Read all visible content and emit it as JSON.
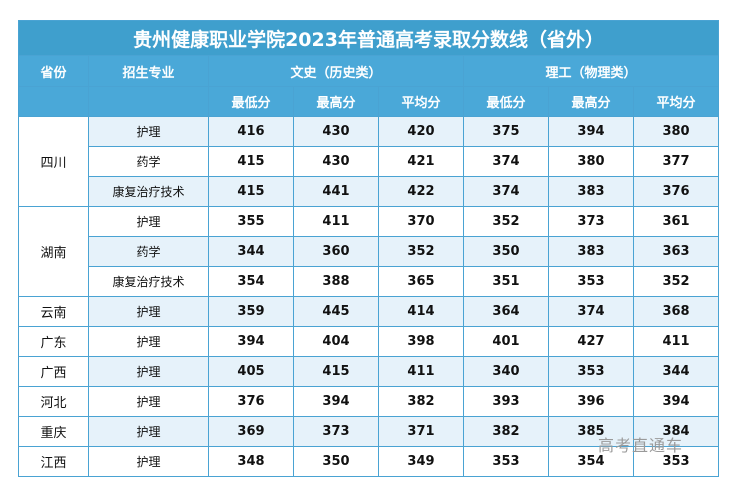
{
  "title": "贵州健康职业学院2023年普通高考录取分数线（省外）",
  "headers": {
    "province": "省份",
    "major": "招生专业",
    "wenshi": "文史（历史类）",
    "ligong": "理工（物理类）",
    "min": "最低分",
    "max": "最高分",
    "avg": "平均分"
  },
  "groups": [
    {
      "province": "四川",
      "rows": [
        {
          "major": "护理",
          "w_min": "416",
          "w_max": "430",
          "w_avg": "420",
          "l_min": "375",
          "l_max": "394",
          "l_avg": "380"
        },
        {
          "major": "药学",
          "w_min": "415",
          "w_max": "430",
          "w_avg": "421",
          "l_min": "374",
          "l_max": "380",
          "l_avg": "377"
        },
        {
          "major": "康复治疗技术",
          "w_min": "415",
          "w_max": "441",
          "w_avg": "422",
          "l_min": "374",
          "l_max": "383",
          "l_avg": "376"
        }
      ]
    },
    {
      "province": "湖南",
      "rows": [
        {
          "major": "护理",
          "w_min": "355",
          "w_max": "411",
          "w_avg": "370",
          "l_min": "352",
          "l_max": "373",
          "l_avg": "361"
        },
        {
          "major": "药学",
          "w_min": "344",
          "w_max": "360",
          "w_avg": "352",
          "l_min": "350",
          "l_max": "383",
          "l_avg": "363"
        },
        {
          "major": "康复治疗技术",
          "w_min": "354",
          "w_max": "388",
          "w_avg": "365",
          "l_min": "351",
          "l_max": "353",
          "l_avg": "352"
        }
      ]
    },
    {
      "province": "云南",
      "rows": [
        {
          "major": "护理",
          "w_min": "359",
          "w_max": "445",
          "w_avg": "414",
          "l_min": "364",
          "l_max": "374",
          "l_avg": "368"
        }
      ]
    },
    {
      "province": "广东",
      "rows": [
        {
          "major": "护理",
          "w_min": "394",
          "w_max": "404",
          "w_avg": "398",
          "l_min": "401",
          "l_max": "427",
          "l_avg": "411"
        }
      ]
    },
    {
      "province": "广西",
      "rows": [
        {
          "major": "护理",
          "w_min": "405",
          "w_max": "415",
          "w_avg": "411",
          "l_min": "340",
          "l_max": "353",
          "l_avg": "344"
        }
      ]
    },
    {
      "province": "河北",
      "rows": [
        {
          "major": "护理",
          "w_min": "376",
          "w_max": "394",
          "w_avg": "382",
          "l_min": "393",
          "l_max": "396",
          "l_avg": "394"
        }
      ]
    },
    {
      "province": "重庆",
      "rows": [
        {
          "major": "护理",
          "w_min": "369",
          "w_max": "373",
          "w_avg": "371",
          "l_min": "382",
          "l_max": "385",
          "l_avg": "384"
        }
      ]
    },
    {
      "province": "江西",
      "rows": [
        {
          "major": "护理",
          "w_min": "348",
          "w_max": "350",
          "w_avg": "349",
          "l_min": "353",
          "l_max": "354",
          "l_avg": "353"
        }
      ]
    }
  ],
  "watermark": "高考直通车"
}
